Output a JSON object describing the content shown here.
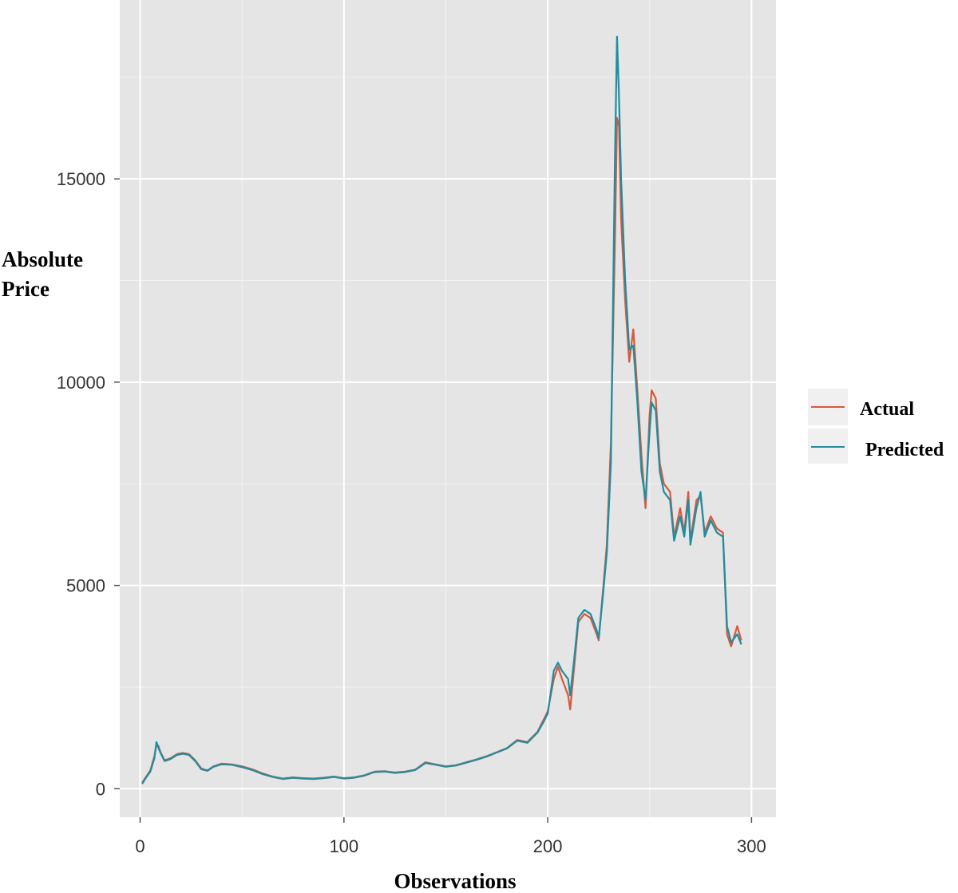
{
  "chart_data": {
    "type": "line",
    "xlabel": "Observations",
    "ylabel_lines": [
      "Absolute",
      "Price"
    ],
    "xlim": [
      -10,
      312
    ],
    "ylim": [
      -700,
      19400
    ],
    "x_ticks": [
      0,
      100,
      200,
      300
    ],
    "x_tick_labels": [
      "0",
      "100",
      "200",
      "300"
    ],
    "y_ticks": [
      0,
      5000,
      10000,
      15000
    ],
    "y_tick_labels": [
      "0",
      "5000",
      "10000",
      "15000"
    ],
    "grid": true,
    "legend_position": "right",
    "series": [
      {
        "name": "Actual",
        "color": "#d9583b",
        "points": [
          [
            1,
            150
          ],
          [
            3,
            300
          ],
          [
            5,
            450
          ],
          [
            7,
            800
          ],
          [
            8,
            1100
          ],
          [
            9,
            1050
          ],
          [
            10,
            900
          ],
          [
            12,
            700
          ],
          [
            15,
            750
          ],
          [
            18,
            850
          ],
          [
            21,
            880
          ],
          [
            24,
            850
          ],
          [
            27,
            700
          ],
          [
            30,
            500
          ],
          [
            33,
            450
          ],
          [
            36,
            550
          ],
          [
            40,
            620
          ],
          [
            45,
            600
          ],
          [
            50,
            550
          ],
          [
            55,
            480
          ],
          [
            60,
            380
          ],
          [
            65,
            300
          ],
          [
            70,
            250
          ],
          [
            75,
            280
          ],
          [
            80,
            260
          ],
          [
            85,
            250
          ],
          [
            90,
            270
          ],
          [
            95,
            300
          ],
          [
            100,
            260
          ],
          [
            105,
            280
          ],
          [
            110,
            330
          ],
          [
            115,
            420
          ],
          [
            120,
            430
          ],
          [
            125,
            400
          ],
          [
            130,
            420
          ],
          [
            135,
            470
          ],
          [
            140,
            650
          ],
          [
            145,
            600
          ],
          [
            150,
            550
          ],
          [
            155,
            580
          ],
          [
            160,
            650
          ],
          [
            165,
            720
          ],
          [
            170,
            800
          ],
          [
            175,
            900
          ],
          [
            180,
            1000
          ],
          [
            185,
            1200
          ],
          [
            190,
            1150
          ],
          [
            195,
            1400
          ],
          [
            198,
            1700
          ],
          [
            200,
            1900
          ],
          [
            203,
            2700
          ],
          [
            205,
            3000
          ],
          [
            207,
            2700
          ],
          [
            210,
            2300
          ],
          [
            211,
            1950
          ],
          [
            213,
            3000
          ],
          [
            215,
            4100
          ],
          [
            218,
            4300
          ],
          [
            221,
            4200
          ],
          [
            224,
            3800
          ],
          [
            225,
            3650
          ],
          [
            227,
            4800
          ],
          [
            229,
            6000
          ],
          [
            231,
            8500
          ],
          [
            233,
            13500
          ],
          [
            234,
            16500
          ],
          [
            235,
            16300
          ],
          [
            236,
            14000
          ],
          [
            238,
            12000
          ],
          [
            240,
            10500
          ],
          [
            242,
            11300
          ],
          [
            244,
            9800
          ],
          [
            246,
            8200
          ],
          [
            248,
            6900
          ],
          [
            250,
            9200
          ],
          [
            251,
            9800
          ],
          [
            253,
            9600
          ],
          [
            255,
            8000
          ],
          [
            257,
            7500
          ],
          [
            260,
            7300
          ],
          [
            262,
            6200
          ],
          [
            265,
            6900
          ],
          [
            267,
            6300
          ],
          [
            269,
            7300
          ],
          [
            270,
            6100
          ],
          [
            273,
            7100
          ],
          [
            275,
            7200
          ],
          [
            277,
            6300
          ],
          [
            280,
            6700
          ],
          [
            283,
            6400
          ],
          [
            286,
            6300
          ],
          [
            288,
            3800
          ],
          [
            290,
            3500
          ],
          [
            293,
            4000
          ],
          [
            295,
            3650
          ]
        ]
      },
      {
        "name": "Predicted",
        "color": "#1b8fa3",
        "points": [
          [
            1,
            120
          ],
          [
            3,
            280
          ],
          [
            5,
            420
          ],
          [
            7,
            750
          ],
          [
            8,
            1150
          ],
          [
            9,
            1000
          ],
          [
            10,
            880
          ],
          [
            12,
            680
          ],
          [
            15,
            730
          ],
          [
            18,
            830
          ],
          [
            21,
            860
          ],
          [
            24,
            830
          ],
          [
            27,
            680
          ],
          [
            30,
            480
          ],
          [
            33,
            440
          ],
          [
            36,
            540
          ],
          [
            40,
            600
          ],
          [
            45,
            590
          ],
          [
            50,
            530
          ],
          [
            55,
            460
          ],
          [
            60,
            360
          ],
          [
            65,
            290
          ],
          [
            70,
            240
          ],
          [
            75,
            270
          ],
          [
            80,
            250
          ],
          [
            85,
            240
          ],
          [
            90,
            260
          ],
          [
            95,
            290
          ],
          [
            100,
            250
          ],
          [
            105,
            270
          ],
          [
            110,
            320
          ],
          [
            115,
            410
          ],
          [
            120,
            420
          ],
          [
            125,
            390
          ],
          [
            130,
            410
          ],
          [
            135,
            460
          ],
          [
            140,
            630
          ],
          [
            145,
            590
          ],
          [
            150,
            540
          ],
          [
            155,
            570
          ],
          [
            160,
            640
          ],
          [
            165,
            710
          ],
          [
            170,
            790
          ],
          [
            175,
            890
          ],
          [
            180,
            990
          ],
          [
            185,
            1180
          ],
          [
            190,
            1130
          ],
          [
            195,
            1380
          ],
          [
            198,
            1650
          ],
          [
            200,
            1850
          ],
          [
            203,
            2900
          ],
          [
            205,
            3100
          ],
          [
            207,
            2900
          ],
          [
            210,
            2700
          ],
          [
            211,
            2300
          ],
          [
            213,
            3200
          ],
          [
            215,
            4200
          ],
          [
            218,
            4400
          ],
          [
            221,
            4300
          ],
          [
            224,
            3900
          ],
          [
            225,
            3700
          ],
          [
            227,
            4700
          ],
          [
            229,
            5800
          ],
          [
            231,
            8000
          ],
          [
            233,
            15500
          ],
          [
            234,
            18500
          ],
          [
            235,
            17000
          ],
          [
            236,
            15000
          ],
          [
            238,
            12500
          ],
          [
            240,
            10800
          ],
          [
            242,
            10900
          ],
          [
            244,
            9500
          ],
          [
            246,
            7800
          ],
          [
            248,
            7100
          ],
          [
            250,
            8800
          ],
          [
            251,
            9500
          ],
          [
            253,
            9300
          ],
          [
            255,
            7800
          ],
          [
            257,
            7300
          ],
          [
            260,
            7100
          ],
          [
            262,
            6100
          ],
          [
            265,
            6700
          ],
          [
            267,
            6200
          ],
          [
            269,
            7100
          ],
          [
            270,
            6000
          ],
          [
            273,
            6900
          ],
          [
            275,
            7300
          ],
          [
            277,
            6200
          ],
          [
            280,
            6600
          ],
          [
            283,
            6300
          ],
          [
            286,
            6200
          ],
          [
            288,
            4000
          ],
          [
            290,
            3600
          ],
          [
            293,
            3800
          ],
          [
            295,
            3550
          ]
        ]
      }
    ]
  }
}
